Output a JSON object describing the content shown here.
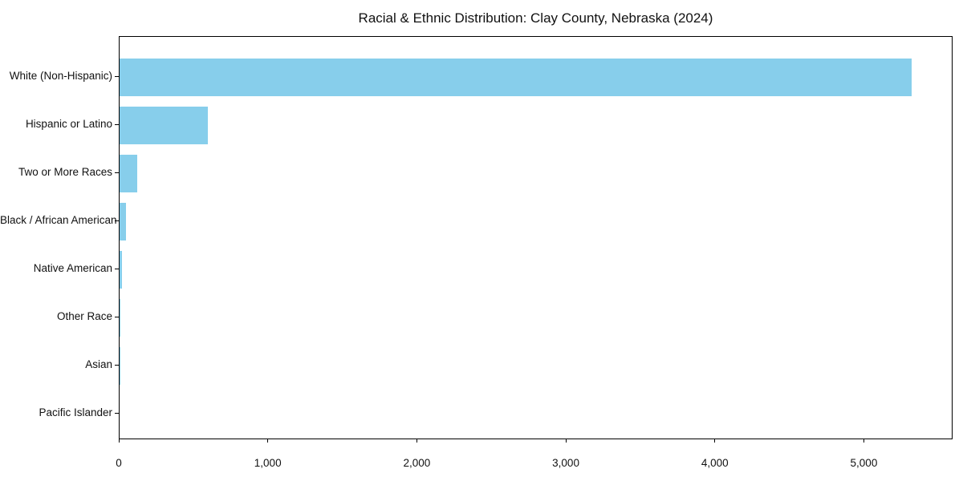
{
  "chart_data": {
    "type": "bar",
    "orientation": "horizontal",
    "title": "Racial & Ethnic Distribution: Clay County, Nebraska (2024)",
    "categories": [
      "White (Non-Hispanic)",
      "Hispanic or Latino",
      "Two or More Races",
      "Black / African American",
      "Native American",
      "Other Race",
      "Asian",
      "Pacific Islander"
    ],
    "values": [
      5320,
      595,
      120,
      45,
      15,
      8,
      5,
      0
    ],
    "xlabel": "",
    "ylabel": "",
    "xlim": [
      0,
      5590
    ],
    "x_ticks": [
      0,
      1000,
      2000,
      3000,
      4000,
      5000
    ],
    "x_tick_labels": [
      "0",
      "1,000",
      "2,000",
      "3,000",
      "4,000",
      "5,000"
    ],
    "bar_color": "#87CEEB",
    "axis_color": "#000000",
    "background_color": "#ffffff",
    "grid": false,
    "legend_position": "none"
  }
}
